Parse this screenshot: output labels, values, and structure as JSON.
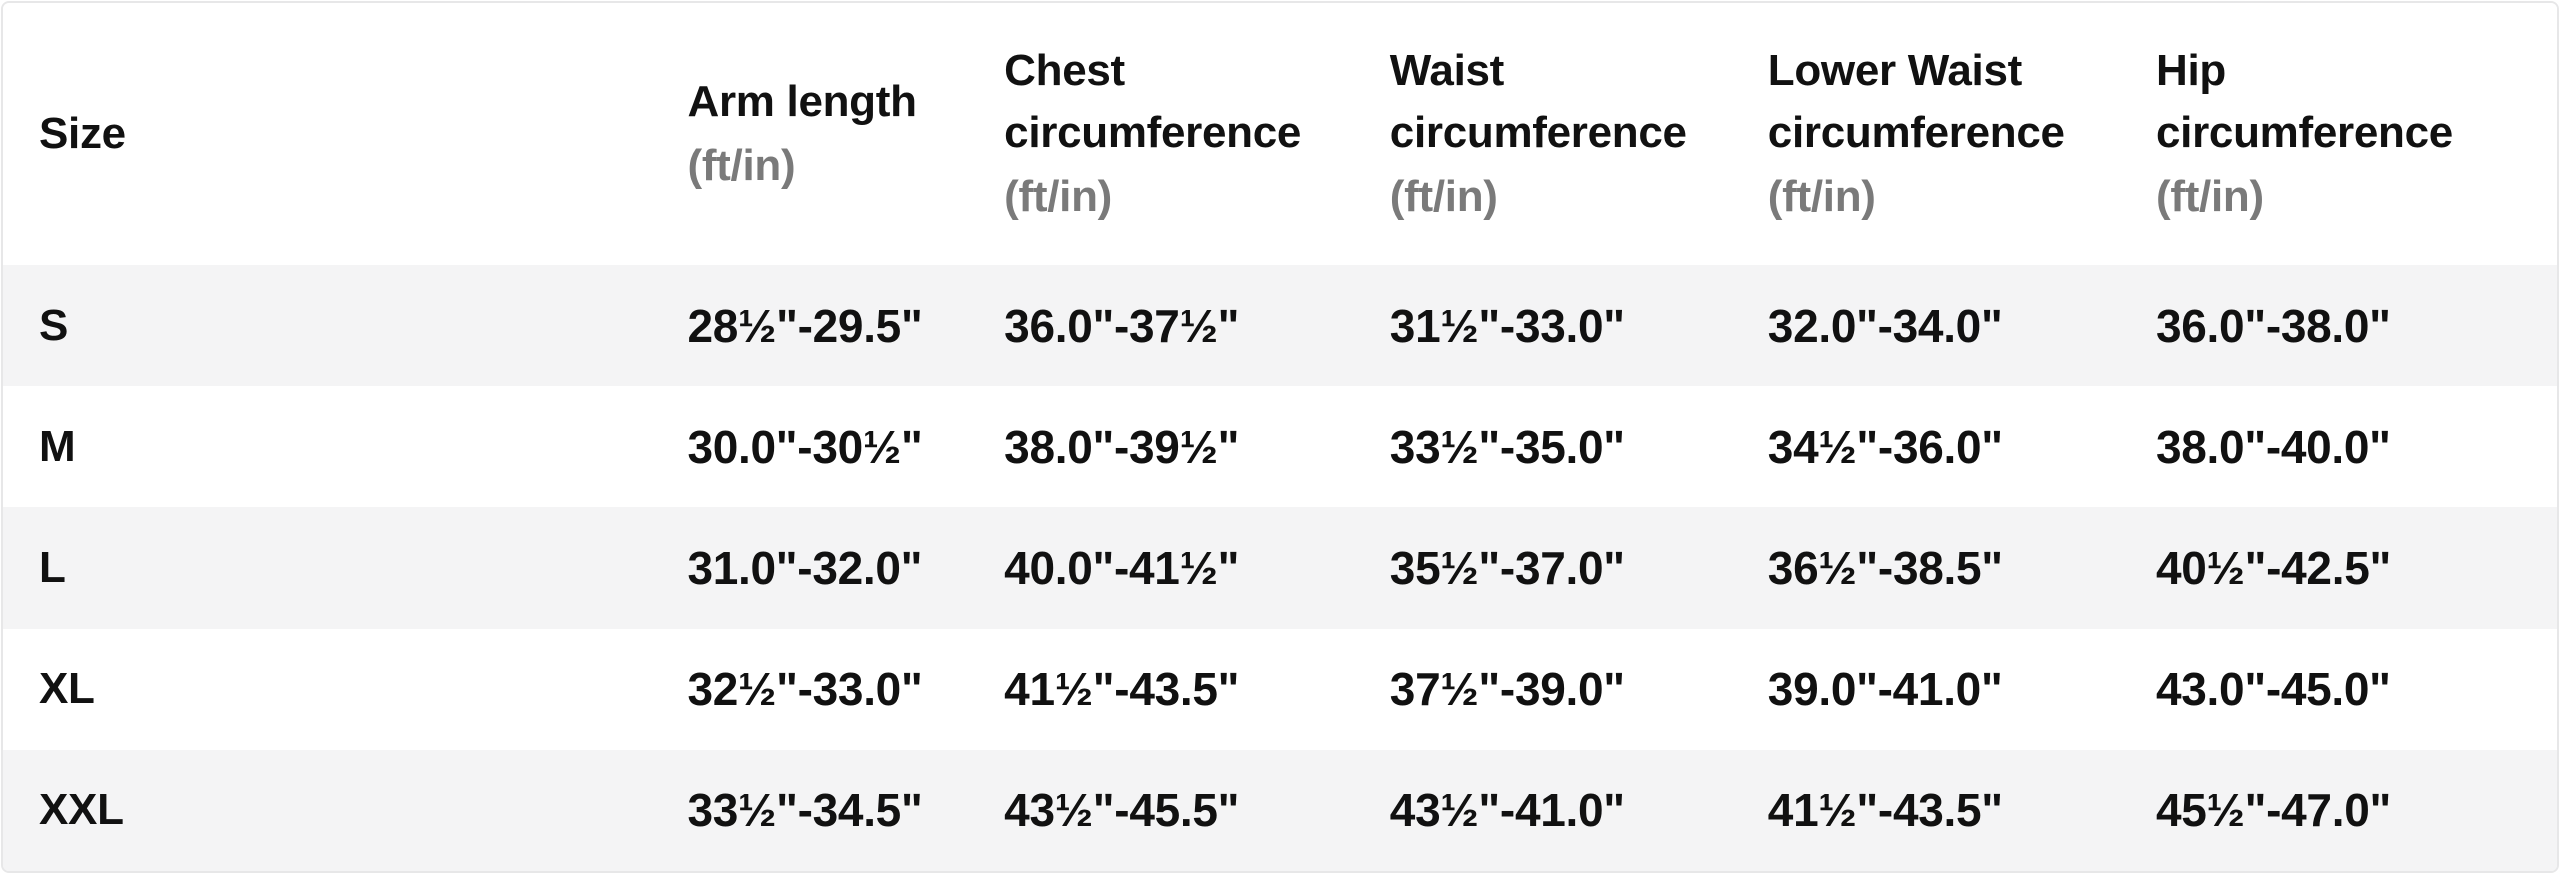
{
  "chart_data": {
    "type": "table",
    "columns": [
      {
        "label": "Size",
        "unit": ""
      },
      {
        "label": "Arm length",
        "unit": "(ft/in)"
      },
      {
        "label": "Chest circumference",
        "unit": "(ft/in)"
      },
      {
        "label": "Waist circumference",
        "unit": "(ft/in)"
      },
      {
        "label": "Lower Waist circumference",
        "unit": "(ft/in)"
      },
      {
        "label": "Hip circumference",
        "unit": "(ft/in)"
      }
    ],
    "rows": [
      {
        "size": "S",
        "values": [
          "28½\"-29.5\"",
          "36.0\"-37½\"",
          "31½\"-33.0\"",
          "32.0\"-34.0\"",
          "36.0\"-38.0\""
        ]
      },
      {
        "size": "M",
        "values": [
          "30.0\"-30½\"",
          "38.0\"-39½\"",
          "33½\"-35.0\"",
          "34½\"-36.0\"",
          "38.0\"-40.0\""
        ]
      },
      {
        "size": "L",
        "values": [
          "31.0\"-32.0\"",
          "40.0\"-41½\"",
          "35½\"-37.0\"",
          "36½\"-38.5\"",
          "40½\"-42.5\""
        ]
      },
      {
        "size": "XL",
        "values": [
          "32½\"-33.0\"",
          "41½\"-43.5\"",
          "37½\"-39.0\"",
          "39.0\"-41.0\"",
          "43.0\"-45.0\""
        ]
      },
      {
        "size": "XXL",
        "values": [
          "33½\"-34.5\"",
          "43½\"-45.5\"",
          "43½\"-41.0\"",
          "41½\"-43.5\"",
          "45½\"-47.0\""
        ]
      }
    ],
    "layout_hints": {
      "grid": "zebra-rows",
      "legend": "none"
    }
  },
  "colors": {
    "text": "#111111",
    "unit_gray": "#7a7a7a",
    "row_stripe": "#f4f4f5",
    "border": "#e7e7e8",
    "background": "#ffffff"
  }
}
